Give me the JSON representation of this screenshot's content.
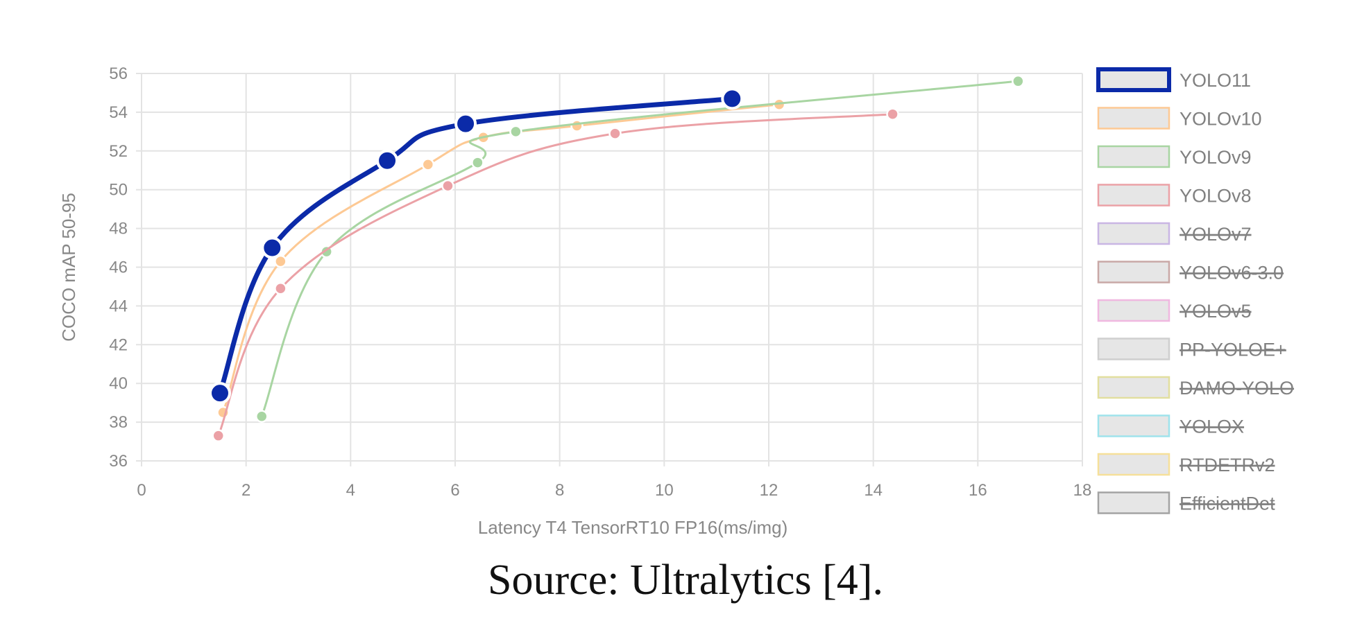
{
  "chart_data": {
    "type": "line",
    "title": "",
    "xlabel": "Latency T4 TensorRT10 FP16(ms/img)",
    "ylabel": "COCO mAP 50-95",
    "xlim": [
      0,
      18
    ],
    "ylim": [
      36,
      56
    ],
    "xticks": [
      0,
      2,
      4,
      6,
      8,
      10,
      12,
      14,
      16,
      18
    ],
    "yticks": [
      36,
      38,
      40,
      42,
      44,
      46,
      48,
      50,
      52,
      54,
      56
    ],
    "grid": true,
    "legend_position": "right",
    "series": [
      {
        "name": "YOLO11",
        "color": "#0b2aa8",
        "hidden": false,
        "emphasis": true,
        "x": [
          1.5,
          2.5,
          4.7,
          6.2,
          11.3
        ],
        "y": [
          39.5,
          47.0,
          51.5,
          53.4,
          54.7
        ]
      },
      {
        "name": "YOLOv10",
        "color": "#fdc994",
        "hidden": false,
        "x": [
          1.56,
          2.66,
          5.48,
          6.54,
          8.33,
          12.2
        ],
        "y": [
          38.5,
          46.3,
          51.3,
          52.7,
          53.3,
          54.4
        ]
      },
      {
        "name": "YOLOv9",
        "color": "#a8d5a2",
        "hidden": false,
        "x": [
          2.3,
          3.54,
          6.43,
          7.16,
          16.77
        ],
        "y": [
          38.3,
          46.8,
          51.4,
          53.0,
          55.6
        ]
      },
      {
        "name": "YOLOv8",
        "color": "#eba1a6",
        "hidden": false,
        "x": [
          1.47,
          2.66,
          5.86,
          9.06,
          14.37
        ],
        "y": [
          37.3,
          44.9,
          50.2,
          52.9,
          53.9
        ]
      },
      {
        "name": "YOLOv7",
        "color": "#c9b6e4",
        "hidden": true,
        "x": [],
        "y": []
      },
      {
        "name": "YOLOv6-3.0",
        "color": "#c9a8a6",
        "hidden": true,
        "x": [],
        "y": []
      },
      {
        "name": "YOLOv5",
        "color": "#f0b8e0",
        "hidden": true,
        "x": [],
        "y": []
      },
      {
        "name": "PP-YOLOE+",
        "color": "#cfcfcf",
        "hidden": true,
        "x": [],
        "y": []
      },
      {
        "name": "DAMO-YOLO",
        "color": "#e2df9f",
        "hidden": true,
        "x": [],
        "y": []
      },
      {
        "name": "YOLOX",
        "color": "#9fe3ec",
        "hidden": true,
        "x": [],
        "y": []
      },
      {
        "name": "RTDETRv2",
        "color": "#f6e09a",
        "hidden": true,
        "x": [],
        "y": []
      },
      {
        "name": "EfficientDet",
        "color": "#a3a3a3",
        "hidden": true,
        "x": [],
        "y": []
      }
    ]
  },
  "caption": "Source: Ultralytics [4]."
}
